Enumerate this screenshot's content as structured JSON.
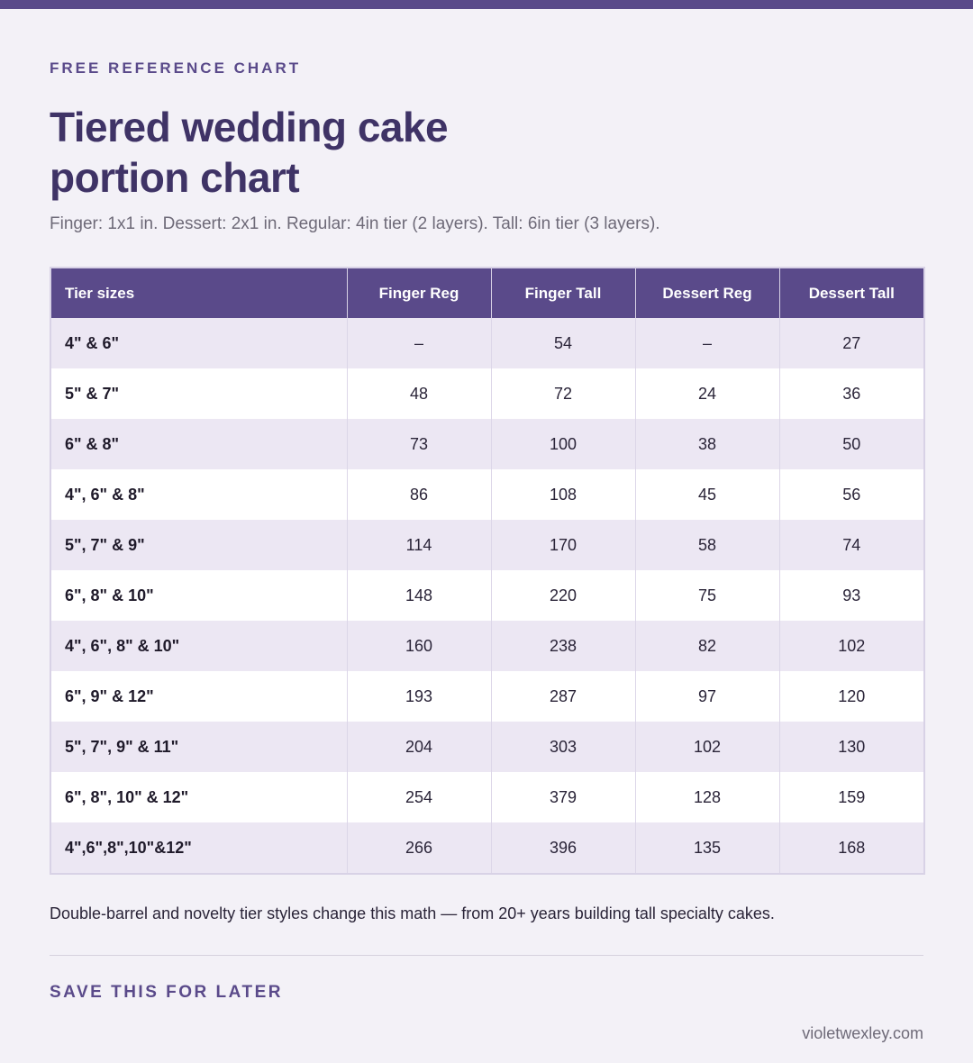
{
  "eyebrow": "FREE REFERENCE CHART",
  "title_line1": "Tiered wedding cake",
  "title_line2": "portion chart",
  "subtitle": "Finger: 1x1 in. Dessert: 2x1 in. Regular: 4in tier (2 layers). Tall: 6in tier (3 layers).",
  "table": {
    "headers": [
      "Tier sizes",
      "Finger Reg",
      "Finger Tall",
      "Dessert Reg",
      "Dessert Tall"
    ],
    "rows": [
      [
        "4\" & 6\"",
        "–",
        "54",
        "–",
        "27"
      ],
      [
        "5\" & 7\"",
        "48",
        "72",
        "24",
        "36"
      ],
      [
        "6\" & 8\"",
        "73",
        "100",
        "38",
        "50"
      ],
      [
        "4\", 6\" & 8\"",
        "86",
        "108",
        "45",
        "56"
      ],
      [
        "5\", 7\" & 9\"",
        "114",
        "170",
        "58",
        "74"
      ],
      [
        "6\", 8\" & 10\"",
        "148",
        "220",
        "75",
        "93"
      ],
      [
        "4\", 6\", 8\" & 10\"",
        "160",
        "238",
        "82",
        "102"
      ],
      [
        "6\", 9\" & 12\"",
        "193",
        "287",
        "97",
        "120"
      ],
      [
        "5\", 7\", 9\" & 11\"",
        "204",
        "303",
        "102",
        "130"
      ],
      [
        "6\", 8\", 10\" & 12\"",
        "254",
        "379",
        "128",
        "159"
      ],
      [
        "4\",6\",8\",10\"&12\"",
        "266",
        "396",
        "135",
        "168"
      ]
    ]
  },
  "footnote": "Double-barrel and novelty tier styles change this math — from 20+ years building tall specialty cakes.",
  "save_label": "SAVE THIS FOR LATER",
  "site": "violetwexley.com",
  "colors": {
    "accent": "#5a4a8a",
    "title": "#3f3366",
    "row_alt": "#ece7f3",
    "background": "#f3f1f7"
  }
}
